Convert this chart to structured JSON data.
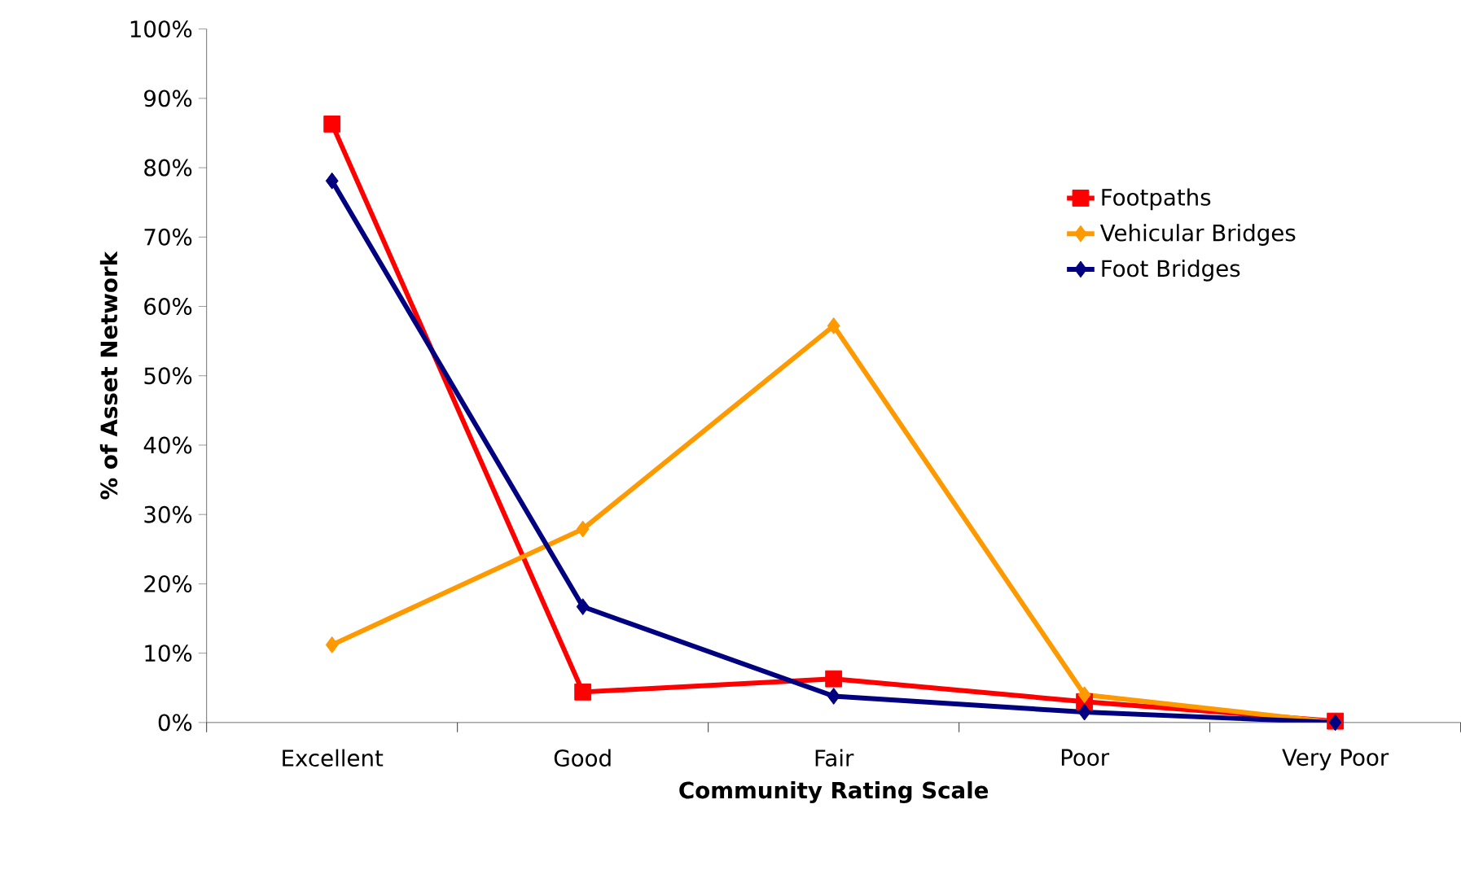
{
  "chart_data": {
    "type": "line",
    "xlabel": "Community Rating Scale",
    "ylabel": "% of Asset Network",
    "categories": [
      "Excellent",
      "Good",
      "Fair",
      "Poor",
      "Very Poor"
    ],
    "series": [
      {
        "name": "Footpaths",
        "color": "#ff0000",
        "marker": "square",
        "values": [
          86.3,
          4.4,
          6.3,
          3.0,
          0.2
        ]
      },
      {
        "name": "Vehicular Bridges",
        "color": "#ff9900",
        "marker": "diamond",
        "values": [
          11.2,
          27.9,
          57.2,
          4.0,
          0
        ]
      },
      {
        "name": "Foot Bridges",
        "color": "#000080",
        "marker": "diamond",
        "values": [
          78.1,
          16.7,
          3.8,
          1.5,
          0
        ]
      }
    ],
    "ylim": [
      0,
      100
    ],
    "yticks": [
      {
        "value": 0,
        "label": "0%"
      },
      {
        "value": 10,
        "label": "10%"
      },
      {
        "value": 20,
        "label": "20%"
      },
      {
        "value": 30,
        "label": "30%"
      },
      {
        "value": 40,
        "label": "40%"
      },
      {
        "value": 50,
        "label": "50%"
      },
      {
        "value": 60,
        "label": "60%"
      },
      {
        "value": 70,
        "label": "70%"
      },
      {
        "value": 80,
        "label": "80%"
      },
      {
        "value": 90,
        "label": "90%"
      },
      {
        "value": 100,
        "label": "100%"
      }
    ],
    "grid": false,
    "legend": "top right"
  }
}
